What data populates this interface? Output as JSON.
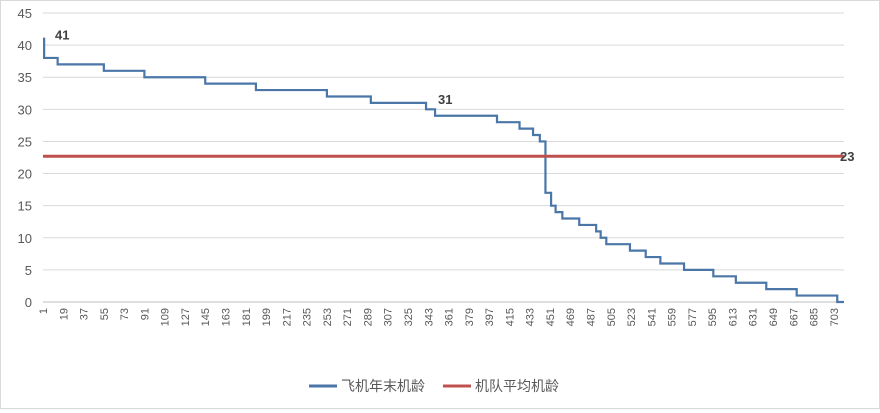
{
  "chart_data": {
    "type": "line",
    "title": "",
    "xlabel": "",
    "ylabel": "",
    "ylim": [
      0,
      45
    ],
    "yticks": [
      0,
      5,
      10,
      15,
      20,
      25,
      30,
      35,
      40,
      45
    ],
    "xlim": [
      1,
      712
    ],
    "xticks": [
      1,
      19,
      37,
      55,
      73,
      91,
      109,
      127,
      145,
      163,
      181,
      199,
      217,
      235,
      253,
      271,
      289,
      307,
      325,
      343,
      361,
      379,
      397,
      415,
      433,
      451,
      469,
      487,
      505,
      523,
      541,
      559,
      577,
      595,
      613,
      631,
      649,
      667,
      685,
      703
    ],
    "grid": true,
    "legend_position": "bottom",
    "series": [
      {
        "name": "飞机年末机龄",
        "color": "#4a76a8",
        "steps": [
          [
            1,
            41
          ],
          [
            2,
            38
          ],
          [
            14,
            37
          ],
          [
            55,
            36
          ],
          [
            91,
            35
          ],
          [
            145,
            34
          ],
          [
            190,
            33
          ],
          [
            253,
            32
          ],
          [
            292,
            31
          ],
          [
            341,
            30
          ],
          [
            349,
            29
          ],
          [
            404,
            28
          ],
          [
            424,
            27
          ],
          [
            436,
            26
          ],
          [
            442,
            25
          ],
          [
            447,
            17
          ],
          [
            452,
            15
          ],
          [
            456,
            14
          ],
          [
            462,
            13
          ],
          [
            477,
            12
          ],
          [
            492,
            11
          ],
          [
            496,
            10
          ],
          [
            501,
            9
          ],
          [
            522,
            8
          ],
          [
            536,
            7
          ],
          [
            549,
            6
          ],
          [
            570,
            5
          ],
          [
            596,
            4
          ],
          [
            616,
            3
          ],
          [
            643,
            2
          ],
          [
            670,
            1
          ],
          [
            706,
            0
          ]
        ],
        "x_end": 712
      },
      {
        "name": "机队平均机龄",
        "color": "#c0504d",
        "constant": 22.7
      }
    ],
    "annotations": [
      {
        "text": "41",
        "x": 1,
        "y": 41
      },
      {
        "text": "31",
        "x": 341,
        "y": 31
      },
      {
        "text": "23",
        "x": 712,
        "y": 22.7
      }
    ]
  }
}
